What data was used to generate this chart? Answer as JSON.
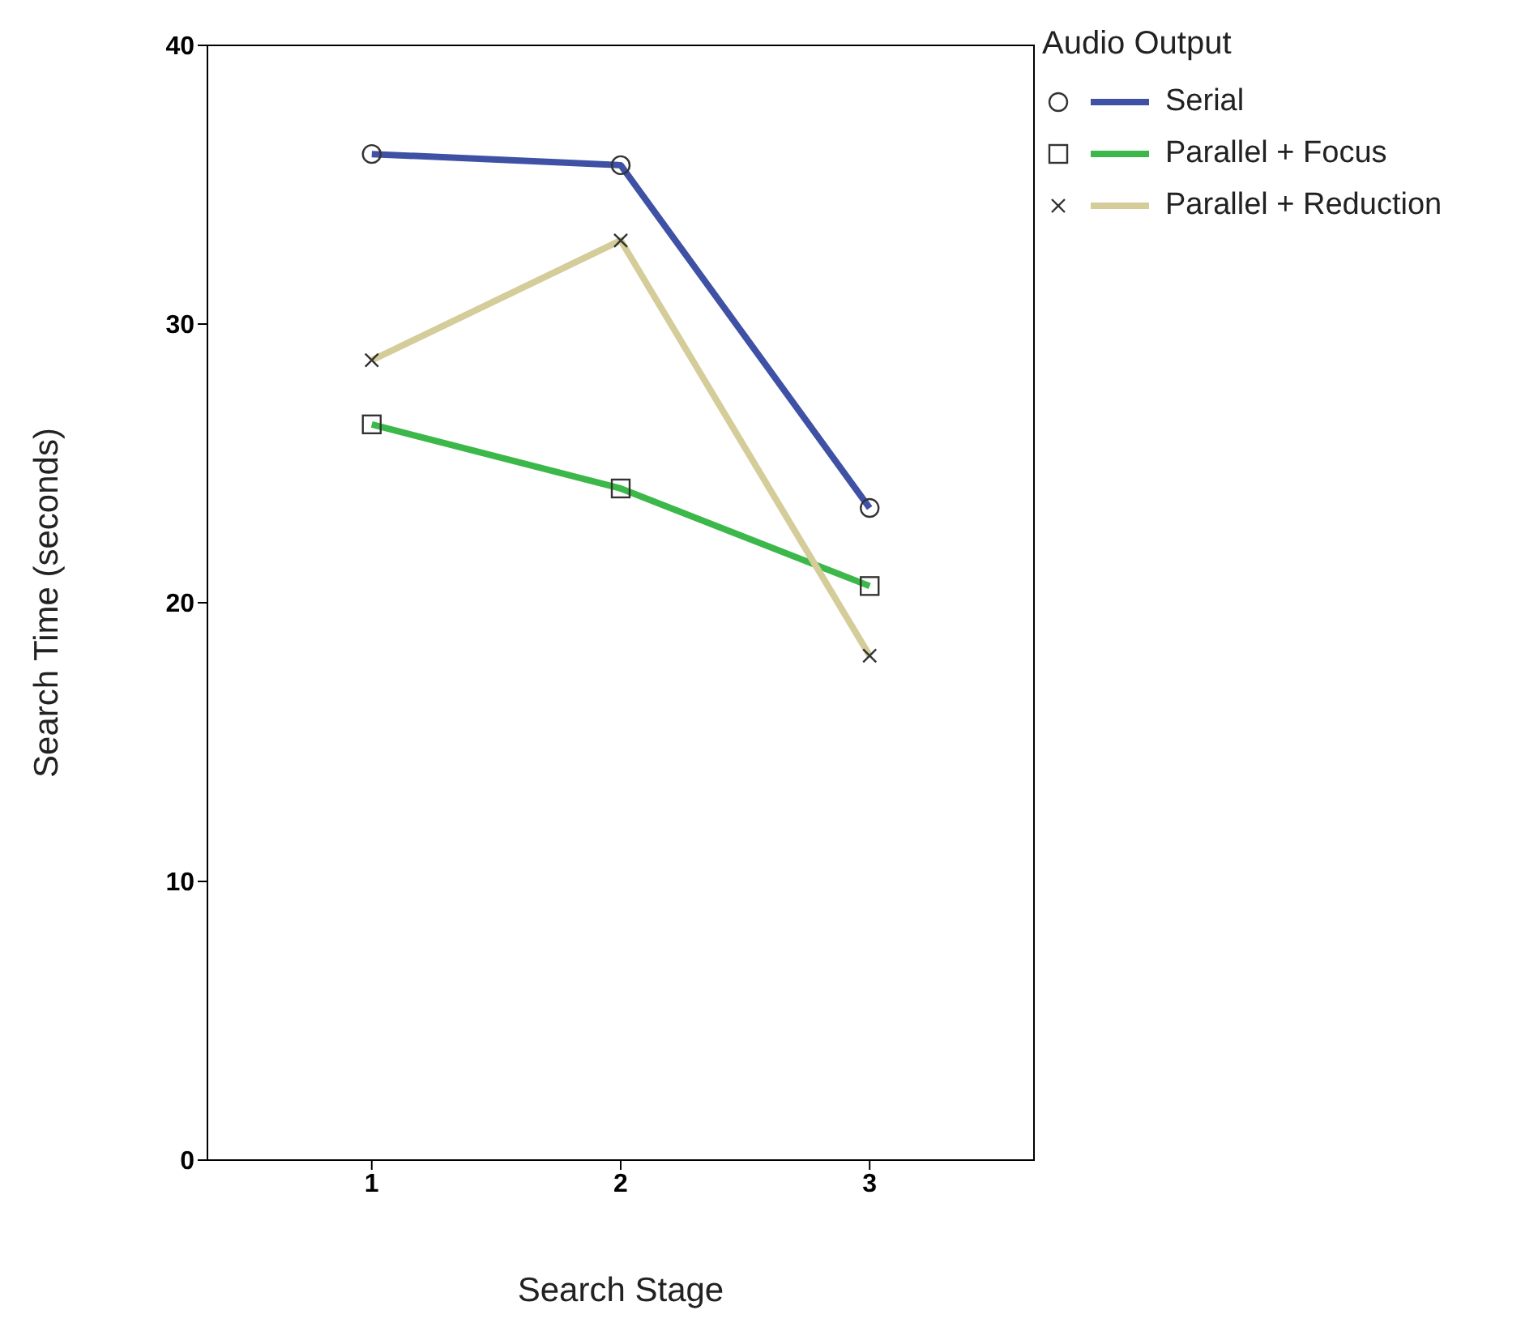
{
  "chart_data": {
    "type": "line",
    "xlabel": "Search Stage",
    "ylabel": "Search Time (seconds)",
    "legend_title": "Audio Output",
    "categories": [
      "1",
      "2",
      "3"
    ],
    "series": [
      {
        "name": "Serial",
        "color": "#3f51a5",
        "marker": "circle",
        "values": [
          36.1,
          35.7,
          23.4
        ]
      },
      {
        "name": "Parallel + Focus",
        "color": "#3cb84a",
        "marker": "square",
        "values": [
          26.4,
          24.1,
          20.6
        ]
      },
      {
        "name": "Parallel + Reduction",
        "color": "#d4cc99",
        "marker": "cross",
        "values": [
          28.7,
          33.0,
          18.1
        ]
      }
    ],
    "ylim": [
      0,
      40
    ],
    "yticks": [
      0,
      10,
      20,
      30,
      40
    ],
    "grid": false,
    "legend": "top right"
  }
}
